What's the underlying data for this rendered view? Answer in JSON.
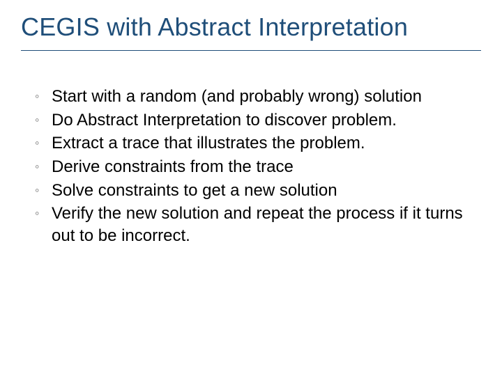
{
  "title": "CEGIS with Abstract Interpretation",
  "title_color": "#1f4e79",
  "rule_color": "#1f4e79",
  "background_color": "#ffffff",
  "bullet_marker": "◦",
  "bullets": [
    "Start with a random (and probably wrong) solution",
    "Do Abstract Interpretation to discover problem.",
    "Extract a trace that illustrates the problem.",
    "Derive constraints from the trace",
    "Solve constraints to get a new solution",
    "Verify the new solution and repeat the process if it turns out to be incorrect."
  ],
  "title_fontsize": 36,
  "body_fontsize": 24,
  "marker_color": "#6f6f6f"
}
